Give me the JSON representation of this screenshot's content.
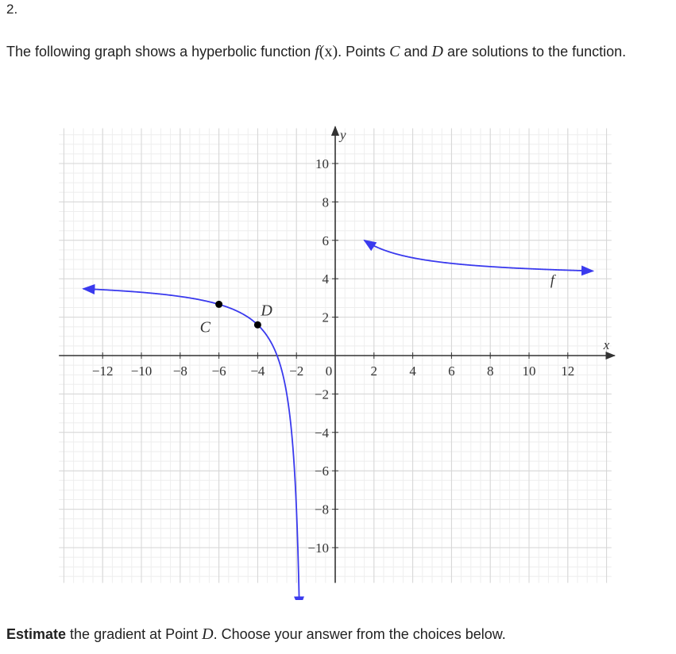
{
  "question_number": "2.",
  "intro": {
    "part1": "The following graph shows a hyperbolic function ",
    "func_name": "f",
    "func_arg": "(x)",
    "part2": ". Points ",
    "point_c": "C",
    "part3": " and ",
    "point_d": "D",
    "part4": " are solutions to the function."
  },
  "prompt": {
    "bold": "Estimate",
    "text": " the gradient at Point ",
    "point": "D",
    "end": ". Choose your answer from the choices below."
  },
  "chart_data": {
    "type": "line",
    "xlabel": "x",
    "ylabel": "y",
    "xlim": [
      -14.5,
      14.5
    ],
    "ylim": [
      -12,
      12
    ],
    "grid": true,
    "x_ticks": [
      -12,
      -10,
      -8,
      -6,
      -4,
      -2,
      0,
      2,
      4,
      6,
      8,
      10,
      12
    ],
    "x_tick_labels": [
      "−12",
      "−10",
      "−8",
      "−6",
      "−4",
      "−2",
      "0",
      "2",
      "4",
      "6",
      "8",
      "10",
      "12"
    ],
    "y_ticks": [
      10,
      8,
      6,
      4,
      2,
      -2,
      -4,
      -6,
      -8,
      -10
    ],
    "y_tick_labels": [
      "10",
      "8",
      "6",
      "4",
      "2",
      "−2",
      "−4",
      "−6",
      "−8",
      "−10"
    ],
    "series": [
      {
        "name": "f",
        "color": "#3a3aee",
        "function": {
          "a": 6,
          "h": -1.5,
          "k": 4
        },
        "left_branch_x": [
          -13,
          -1.85
        ],
        "right_branch_x": [
          1.5,
          13.3
        ]
      }
    ],
    "points": [
      {
        "label": "C",
        "x": -6,
        "y": 2.67
      },
      {
        "label": "D",
        "x": -4,
        "y": 1.6
      }
    ]
  }
}
